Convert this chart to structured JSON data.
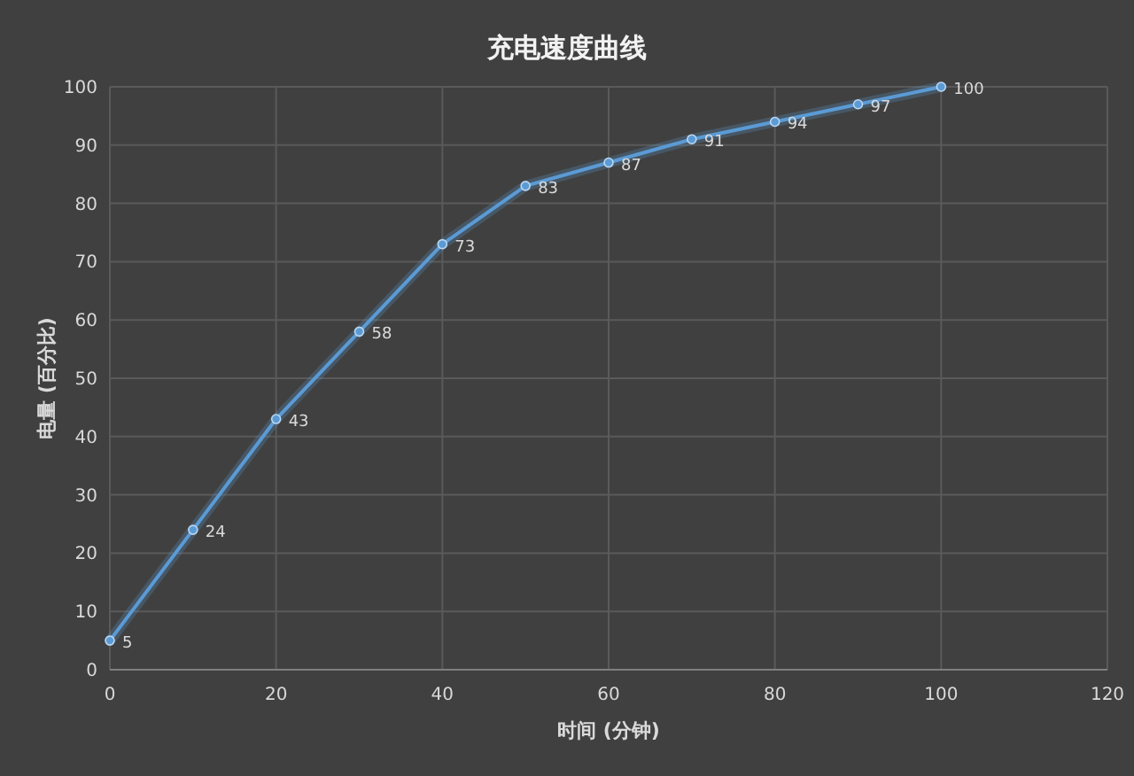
{
  "chart_data": {
    "type": "line",
    "title": "充电速度曲线",
    "xlabel": "时间 (分钟)",
    "ylabel": "电量 (百分比)",
    "x": [
      0,
      10,
      20,
      30,
      40,
      50,
      60,
      70,
      80,
      90,
      100
    ],
    "series": [
      {
        "color": "#5b9bd5",
        "values": [
          5,
          24,
          43,
          58,
          73,
          83,
          87,
          91,
          94,
          97,
          100
        ]
      }
    ],
    "xlim": [
      0,
      120
    ],
    "xticks": [
      0,
      20,
      40,
      60,
      80,
      100,
      120
    ],
    "ylim": [
      0,
      100
    ],
    "yticks": [
      0,
      10,
      20,
      30,
      40,
      50,
      60,
      70,
      80,
      90,
      100
    ],
    "grid": true,
    "marker": "circle",
    "line_style": "solid",
    "data_labels": true
  }
}
